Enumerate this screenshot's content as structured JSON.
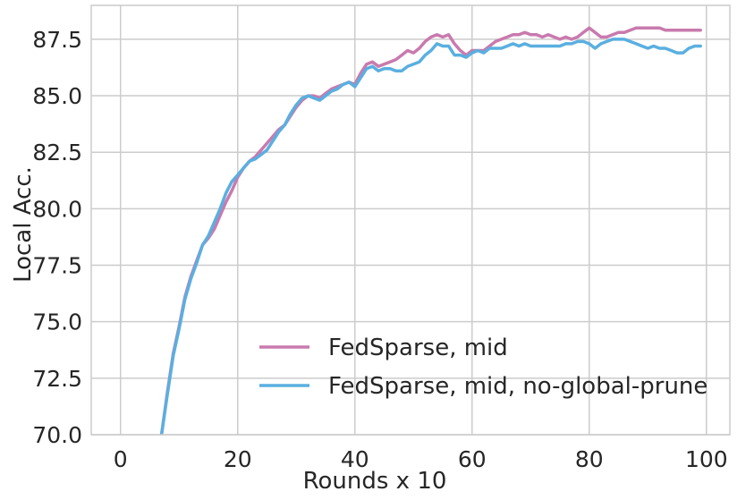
{
  "chart_data": {
    "type": "line",
    "xlabel": "Rounds x 10",
    "ylabel": "Local Acc.",
    "xlim": [
      -5,
      104
    ],
    "ylim": [
      70.0,
      89.0
    ],
    "xticks": [
      0,
      20,
      40,
      60,
      80,
      100
    ],
    "yticks": [
      70.0,
      72.5,
      75.0,
      77.5,
      80.0,
      82.5,
      85.0,
      87.5
    ],
    "xtick_labels": [
      "0",
      "20",
      "40",
      "60",
      "80",
      "100"
    ],
    "ytick_labels": [
      "70.0",
      "72.5",
      "75.0",
      "77.5",
      "80.0",
      "82.5",
      "85.0",
      "87.5"
    ],
    "grid": true,
    "legend_position": "lower-right",
    "x": [
      7,
      8,
      9,
      10,
      11,
      12,
      13,
      14,
      15,
      16,
      17,
      18,
      19,
      20,
      21,
      22,
      23,
      24,
      25,
      26,
      27,
      28,
      29,
      30,
      31,
      32,
      33,
      34,
      35,
      36,
      37,
      38,
      39,
      40,
      41,
      42,
      43,
      44,
      45,
      46,
      47,
      48,
      49,
      50,
      51,
      52,
      53,
      54,
      55,
      56,
      57,
      58,
      59,
      60,
      61,
      62,
      63,
      64,
      65,
      66,
      67,
      68,
      69,
      70,
      71,
      72,
      73,
      74,
      75,
      76,
      77,
      78,
      79,
      80,
      81,
      82,
      83,
      84,
      85,
      86,
      87,
      88,
      89,
      90,
      91,
      92,
      93,
      94,
      95,
      96,
      97,
      98,
      99
    ],
    "series": [
      {
        "name": "FedSparse, mid",
        "color": "#c97aae",
        "values": [
          70.0,
          71.9,
          73.6,
          74.8,
          76.1,
          77.0,
          77.7,
          78.4,
          78.7,
          79.1,
          79.7,
          80.3,
          80.8,
          81.4,
          81.8,
          82.1,
          82.3,
          82.6,
          82.9,
          83.2,
          83.5,
          83.7,
          84.1,
          84.5,
          84.8,
          85.0,
          85.0,
          84.9,
          85.1,
          85.3,
          85.4,
          85.5,
          85.6,
          85.5,
          86.0,
          86.4,
          86.5,
          86.3,
          86.4,
          86.5,
          86.6,
          86.8,
          87.0,
          86.9,
          87.1,
          87.4,
          87.6,
          87.7,
          87.6,
          87.7,
          87.3,
          87.0,
          86.8,
          87.0,
          87.0,
          87.0,
          87.2,
          87.4,
          87.5,
          87.6,
          87.7,
          87.7,
          87.8,
          87.7,
          87.7,
          87.6,
          87.7,
          87.6,
          87.5,
          87.6,
          87.5,
          87.6,
          87.8,
          88.0,
          87.8,
          87.6,
          87.6,
          87.7,
          87.8,
          87.8,
          87.9,
          88.0,
          88.0,
          88.0,
          88.0,
          88.0,
          87.9,
          87.9,
          87.9,
          87.9,
          87.9,
          87.9,
          87.9
        ]
      },
      {
        "name": "FedSparse, mid, no-global-prune",
        "color": "#5aafe0",
        "values": [
          70.0,
          71.8,
          73.5,
          74.7,
          76.0,
          76.9,
          77.6,
          78.4,
          78.8,
          79.4,
          80.0,
          80.7,
          81.2,
          81.5,
          81.8,
          82.1,
          82.2,
          82.4,
          82.6,
          83.0,
          83.4,
          83.7,
          84.2,
          84.6,
          84.9,
          85.0,
          84.9,
          84.8,
          85.0,
          85.2,
          85.3,
          85.5,
          85.6,
          85.4,
          85.8,
          86.2,
          86.3,
          86.1,
          86.2,
          86.2,
          86.1,
          86.1,
          86.3,
          86.4,
          86.5,
          86.8,
          87.0,
          87.3,
          87.2,
          87.2,
          86.8,
          86.8,
          86.7,
          86.9,
          87.0,
          86.9,
          87.1,
          87.1,
          87.1,
          87.2,
          87.3,
          87.2,
          87.3,
          87.2,
          87.2,
          87.2,
          87.2,
          87.2,
          87.2,
          87.3,
          87.3,
          87.4,
          87.4,
          87.3,
          87.1,
          87.3,
          87.4,
          87.5,
          87.5,
          87.5,
          87.4,
          87.3,
          87.2,
          87.1,
          87.2,
          87.1,
          87.1,
          87.0,
          86.9,
          86.9,
          87.1,
          87.2,
          87.2
        ]
      }
    ]
  }
}
